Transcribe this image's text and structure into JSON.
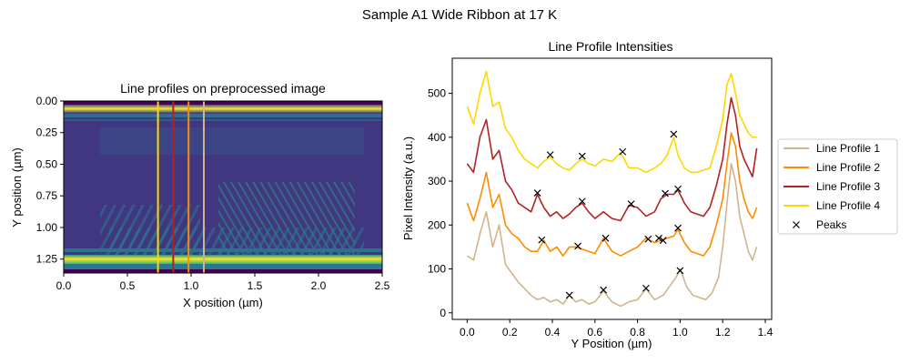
{
  "figure": {
    "suptitle": "Sample A1 Wide Ribbon at 17 K"
  },
  "colors": {
    "profile1": "#d2b48c",
    "profile2": "#ff8c00",
    "profile3": "#b22222",
    "profile4": "#ffd700",
    "peaks": "#000000",
    "axis": "#000000"
  },
  "chart_data": [
    {
      "type": "heatmap",
      "title": "Line profiles on preprocessed image",
      "xlabel": "X position (µm)",
      "ylabel": "Y position (µm)",
      "xlim": [
        0,
        2.5
      ],
      "ylim": [
        1.36,
        0.0
      ],
      "xticks": [
        0.0,
        0.5,
        1.0,
        1.5,
        2.0,
        2.5
      ],
      "xtick_labels": [
        "0.0",
        "0.5",
        "1.0",
        "1.5",
        "2.0",
        "2.5"
      ],
      "yticks": [
        0.0,
        0.25,
        0.5,
        0.75,
        1.0,
        1.25
      ],
      "ytick_labels": [
        "0.00",
        "0.25",
        "0.50",
        "0.75",
        "1.00",
        "1.25"
      ],
      "colormap": "viridis",
      "grid": false,
      "vertical_lines": [
        {
          "series": "Line Profile 4",
          "x": 0.74
        },
        {
          "series": "Line Profile 3",
          "x": 0.86
        },
        {
          "series": "Line Profile 2",
          "x": 0.98
        },
        {
          "series": "Line Profile 1",
          "x": 1.1
        }
      ]
    },
    {
      "type": "line",
      "title": "Line Profile Intensities",
      "xlabel": "Y Position (µm)",
      "ylabel": "Pixel Intensity (a.u.)",
      "xlim": [
        -0.07,
        1.43
      ],
      "ylim": [
        -15,
        580
      ],
      "xticks": [
        0.0,
        0.2,
        0.4,
        0.6,
        0.8,
        1.0,
        1.2,
        1.4
      ],
      "xtick_labels": [
        "0.0",
        "0.2",
        "0.4",
        "0.6",
        "0.8",
        "1.0",
        "1.2",
        "1.4"
      ],
      "yticks": [
        0,
        100,
        200,
        300,
        400,
        500
      ],
      "ytick_labels": [
        "0",
        "100",
        "200",
        "300",
        "400",
        "500"
      ],
      "grid": false,
      "legend_position": "outside-right",
      "legend": [
        "Line Profile 1",
        "Line Profile 2",
        "Line Profile 3",
        "Line Profile 4",
        "Peaks"
      ],
      "series": [
        {
          "name": "Line Profile 1",
          "color": "#d2b48c",
          "x": [
            0.0,
            0.03,
            0.06,
            0.09,
            0.12,
            0.15,
            0.18,
            0.21,
            0.24,
            0.27,
            0.3,
            0.33,
            0.36,
            0.39,
            0.42,
            0.45,
            0.48,
            0.51,
            0.54,
            0.57,
            0.6,
            0.64,
            0.68,
            0.72,
            0.76,
            0.8,
            0.84,
            0.88,
            0.92,
            0.95,
            0.98,
            1.0,
            1.03,
            1.06,
            1.09,
            1.12,
            1.15,
            1.18,
            1.2,
            1.22,
            1.24,
            1.26,
            1.28,
            1.3,
            1.32,
            1.34,
            1.36
          ],
          "y": [
            130,
            120,
            180,
            230,
            150,
            200,
            110,
            90,
            70,
            55,
            40,
            30,
            35,
            25,
            30,
            20,
            40,
            25,
            30,
            20,
            25,
            50,
            25,
            15,
            25,
            30,
            55,
            30,
            40,
            60,
            80,
            100,
            60,
            40,
            35,
            30,
            45,
            80,
            150,
            250,
            340,
            300,
            220,
            180,
            140,
            120,
            150
          ]
        },
        {
          "name": "Line Profile 2",
          "color": "#ff8c00",
          "x": [
            0.0,
            0.03,
            0.06,
            0.09,
            0.12,
            0.15,
            0.18,
            0.21,
            0.24,
            0.27,
            0.3,
            0.33,
            0.36,
            0.39,
            0.42,
            0.45,
            0.48,
            0.51,
            0.54,
            0.57,
            0.6,
            0.64,
            0.68,
            0.72,
            0.76,
            0.8,
            0.84,
            0.88,
            0.91,
            0.94,
            0.97,
            0.99,
            1.02,
            1.05,
            1.08,
            1.11,
            1.14,
            1.17,
            1.2,
            1.22,
            1.24,
            1.26,
            1.28,
            1.3,
            1.32,
            1.34,
            1.36
          ],
          "y": [
            250,
            210,
            260,
            320,
            240,
            270,
            200,
            180,
            170,
            150,
            140,
            140,
            165,
            140,
            150,
            130,
            150,
            150,
            145,
            140,
            135,
            170,
            140,
            130,
            140,
            150,
            170,
            160,
            165,
            170,
            175,
            190,
            160,
            140,
            135,
            130,
            150,
            200,
            260,
            340,
            410,
            380,
            300,
            260,
            230,
            215,
            240
          ]
        },
        {
          "name": "Line Profile 3",
          "color": "#b22222",
          "x": [
            0.0,
            0.03,
            0.06,
            0.09,
            0.12,
            0.15,
            0.18,
            0.21,
            0.24,
            0.27,
            0.3,
            0.33,
            0.36,
            0.39,
            0.42,
            0.45,
            0.48,
            0.51,
            0.54,
            0.57,
            0.6,
            0.64,
            0.68,
            0.72,
            0.76,
            0.8,
            0.84,
            0.88,
            0.91,
            0.94,
            0.97,
            0.99,
            1.02,
            1.05,
            1.08,
            1.11,
            1.14,
            1.17,
            1.2,
            1.22,
            1.24,
            1.26,
            1.28,
            1.3,
            1.32,
            1.34,
            1.36
          ],
          "y": [
            340,
            320,
            400,
            440,
            350,
            370,
            300,
            280,
            250,
            240,
            230,
            270,
            240,
            220,
            230,
            215,
            225,
            240,
            250,
            230,
            215,
            230,
            215,
            210,
            245,
            240,
            220,
            230,
            260,
            270,
            270,
            280,
            250,
            230,
            225,
            220,
            240,
            290,
            350,
            430,
            490,
            450,
            380,
            350,
            330,
            310,
            375
          ]
        },
        {
          "name": "Line Profile 4",
          "color": "#ffd700",
          "x": [
            0.0,
            0.03,
            0.06,
            0.09,
            0.12,
            0.15,
            0.18,
            0.21,
            0.24,
            0.27,
            0.3,
            0.33,
            0.36,
            0.39,
            0.42,
            0.45,
            0.48,
            0.51,
            0.54,
            0.57,
            0.6,
            0.64,
            0.68,
            0.72,
            0.76,
            0.8,
            0.84,
            0.88,
            0.91,
            0.94,
            0.97,
            0.99,
            1.02,
            1.05,
            1.08,
            1.11,
            1.14,
            1.17,
            1.2,
            1.22,
            1.24,
            1.26,
            1.28,
            1.3,
            1.32,
            1.34,
            1.36
          ],
          "y": [
            470,
            430,
            500,
            550,
            470,
            480,
            420,
            400,
            370,
            350,
            340,
            330,
            345,
            355,
            340,
            330,
            325,
            340,
            350,
            340,
            335,
            350,
            345,
            365,
            330,
            330,
            320,
            330,
            340,
            360,
            400,
            360,
            330,
            320,
            320,
            325,
            330,
            380,
            440,
            520,
            545,
            500,
            450,
            430,
            410,
            400,
            400
          ]
        }
      ],
      "peaks": {
        "name": "Peaks",
        "x": [
          0.48,
          0.64,
          0.84,
          1.0,
          0.35,
          0.52,
          0.65,
          0.85,
          0.9,
          0.92,
          0.99,
          0.33,
          0.54,
          0.77,
          0.93,
          0.99,
          0.39,
          0.54,
          0.73,
          0.97
        ],
        "y": [
          40,
          52,
          56,
          96,
          166,
          152,
          170,
          168,
          170,
          165,
          193,
          273,
          254,
          248,
          272,
          282,
          360,
          357,
          367,
          407
        ]
      }
    }
  ]
}
